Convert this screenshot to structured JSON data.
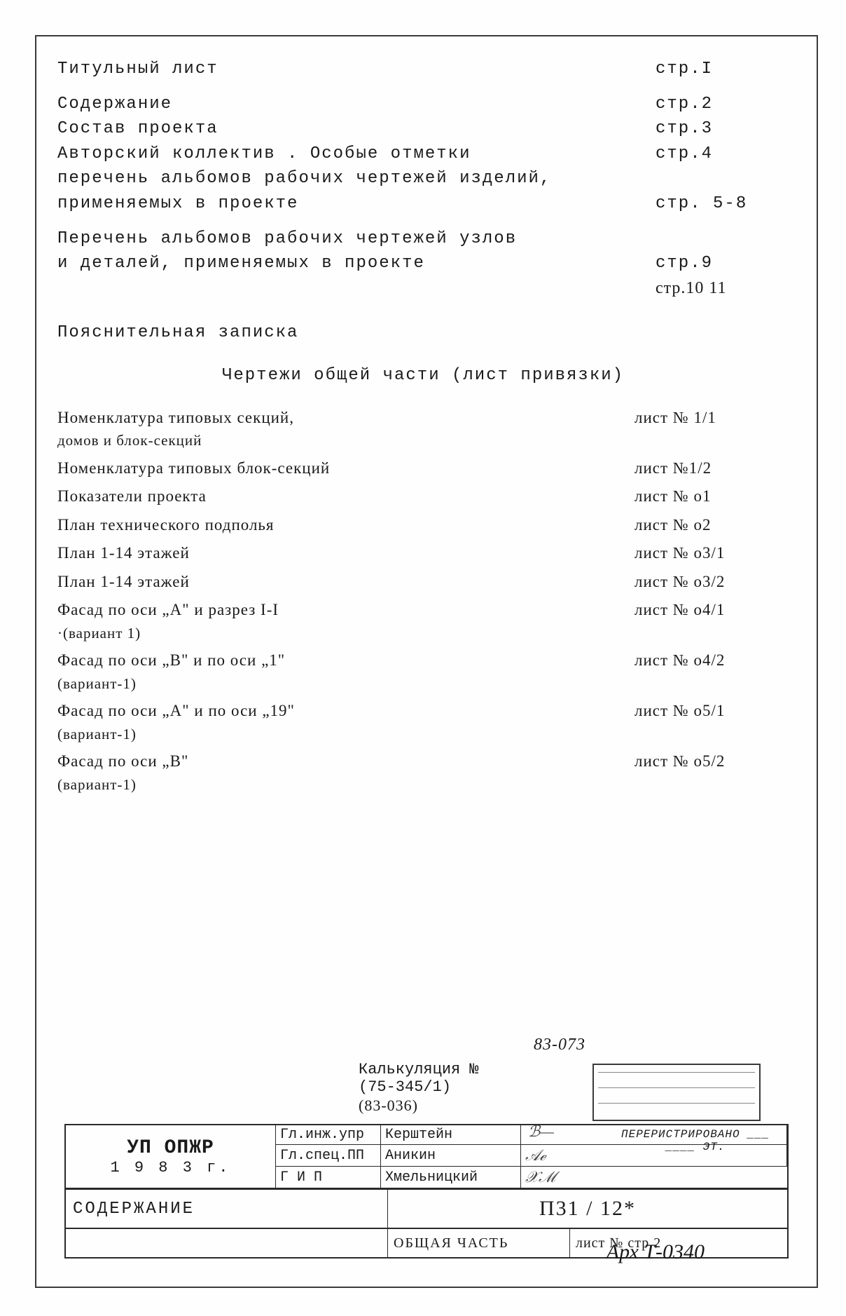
{
  "toc": [
    {
      "label": "Титульный лист",
      "page": "стр.I"
    },
    {
      "label": "Содержание",
      "page": "стр.2"
    },
    {
      "label": "Состав проекта",
      "page": "стр.3"
    },
    {
      "label": "Авторский коллектив . Особые отметки",
      "page": "стр.4"
    },
    {
      "label": "перечень альбомов рабочих чертежей изделий,",
      "page": ""
    },
    {
      "label": "применяемых в проекте",
      "page": "стр. 5-8"
    },
    {
      "label": "Перечень альбомов рабочих чертежей узлов",
      "page": ""
    },
    {
      "label": "и деталей, применяемых в проекте",
      "page": "стр.9"
    },
    {
      "label": "",
      "page": "стр.10 11"
    },
    {
      "label": "Пояснительная записка",
      "page": ""
    }
  ],
  "section_heading": "Чертежи общей части (лист привязки)",
  "drawings": [
    {
      "l1": "Номенклатура типовых секций,",
      "l2": "домов и блок-секций",
      "sheet": "лист № 1/1"
    },
    {
      "l1": "Номенклатура типовых блок-секций",
      "l2": "",
      "sheet": "лист №1/2"
    },
    {
      "l1": "Показатели проекта",
      "l2": "",
      "sheet": "лист № о1"
    },
    {
      "l1": "План технического подполья",
      "l2": "",
      "sheet": "лист № о2"
    },
    {
      "l1": "План 1-14 этажей",
      "l2": "",
      "sheet": "лист № о3/1"
    },
    {
      "l1": "План 1-14 этажей",
      "l2": "",
      "sheet": "лист № о3/2"
    },
    {
      "l1": "Фасад по оси „А\" и разрез I-I",
      "l2": "·(вариант 1)",
      "sheet": "лист № о4/1"
    },
    {
      "l1": "Фасад по оси „В\" и по оси „1\"",
      "l2": "(вариант-1)",
      "sheet": "лист № о4/2"
    },
    {
      "l1": "Фасад по оси „А\" и по оси „19\"",
      "l2": "(вариант-1)",
      "sheet": "лист № о5/1"
    },
    {
      "l1": "Фасад по оси „В\"",
      "l2": "(вариант-1)",
      "sheet": "лист № о5/2"
    }
  ],
  "titleblock": {
    "proj_num": "83-073",
    "kalk_line1": "Калькуляция №",
    "kalk_line2": "(75-345/1)",
    "kalk_line3": "(83-036)",
    "org": "УП ОПЖР",
    "year": "1 9 8 3 г.",
    "roles": [
      {
        "role": "Гл.инж.упр",
        "name": "Керштейн"
      },
      {
        "role": "Гл.спец.ПП",
        "name": "Аникин"
      },
      {
        "role": "Г И П",
        "name": "Хмельницкий"
      }
    ],
    "reg": "ПЕРЕРИСТРИРОВАНО\n___  ____ ЭТ.",
    "content_label": "СОДЕРЖАНИЕ",
    "code": "П31 / 12*",
    "part_label": "ОБЩАЯ ЧАСТЬ",
    "sheet_label": "лист № стр 2",
    "arch": "Арх Т-0340"
  }
}
